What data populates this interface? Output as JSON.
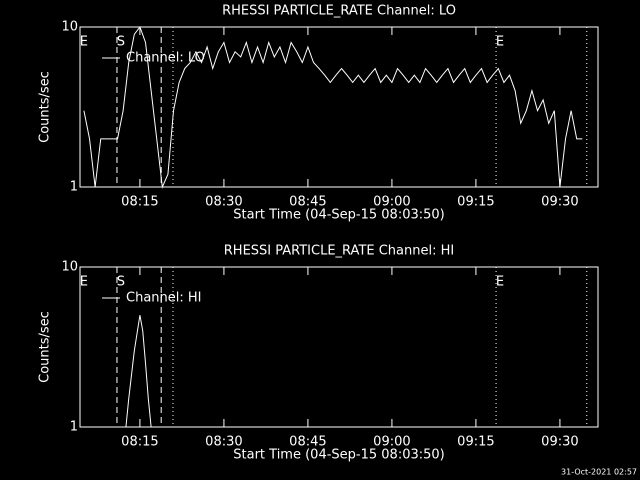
{
  "chart_data": [
    {
      "type": "line",
      "title": "RHESSI PARTICLE_RATE Channel: LO",
      "x_label": "Start Time (04-Sep-15 08:03:50)",
      "y_label": "Counts/sec",
      "xlim": [
        4.3,
        96.8
      ],
      "xticks": [
        {
          "value": 15,
          "label": "08:15"
        },
        {
          "value": 30,
          "label": "08:30"
        },
        {
          "value": 45,
          "label": "08:45"
        },
        {
          "value": 60,
          "label": "09:00"
        },
        {
          "value": 75,
          "label": "09:15"
        },
        {
          "value": 90,
          "label": "09:30"
        }
      ],
      "ylim": [
        1,
        10
      ],
      "yticks": [
        1,
        10
      ],
      "log_y": true,
      "legend": "upper left",
      "vlines": [
        {
          "x": 10.9,
          "style": "dashed"
        },
        {
          "x": 18.8,
          "style": "dashed"
        },
        {
          "x": 20.9,
          "style": "dotted"
        },
        {
          "x": 78.6,
          "style": "dotted"
        },
        {
          "x": 94.8,
          "style": "dotted"
        }
      ],
      "annotations": [
        {
          "text": "E",
          "x": 5
        },
        {
          "text": "S",
          "x": 11.6
        },
        {
          "text": "E",
          "x": 79.3
        }
      ],
      "x": [
        5,
        6,
        7,
        8,
        9,
        10,
        11,
        12,
        13,
        14,
        15,
        16,
        17,
        18,
        19,
        20,
        21,
        22,
        23,
        24,
        25,
        26,
        27,
        28,
        29,
        30,
        31,
        32,
        33,
        34,
        35,
        36,
        37,
        38,
        39,
        40,
        41,
        42,
        43,
        44,
        45,
        46,
        47,
        48,
        49,
        50,
        51,
        52,
        53,
        54,
        55,
        56,
        57,
        58,
        59,
        60,
        61,
        62,
        63,
        64,
        65,
        66,
        67,
        68,
        69,
        70,
        71,
        72,
        73,
        74,
        75,
        76,
        77,
        78,
        79,
        80,
        81,
        82,
        83,
        84,
        85,
        86,
        87,
        88,
        89,
        90,
        91,
        92,
        93,
        94
      ],
      "series": [
        {
          "name": "Channel: LO",
          "color": "#ffffff",
          "values": [
            3,
            2,
            1,
            2,
            2,
            2,
            2,
            3,
            6,
            9,
            10,
            8,
            4,
            2,
            1,
            1.2,
            3,
            4.5,
            5.5,
            6,
            7,
            6,
            7.5,
            5.5,
            7,
            8,
            6,
            7,
            6.5,
            8,
            6,
            7.5,
            6,
            8,
            6.5,
            7.5,
            6,
            8,
            7,
            6,
            7.5,
            6,
            5.5,
            5,
            4.5,
            5,
            5.5,
            5,
            4.5,
            5,
            4.5,
            5,
            5.5,
            4.5,
            5,
            4.5,
            5.5,
            5,
            4.5,
            5,
            4.5,
            5.5,
            5,
            4.5,
            5,
            5.5,
            4.5,
            5,
            5.5,
            4.5,
            5,
            5.5,
            4.5,
            5,
            5.5,
            4.5,
            5,
            4,
            2.5,
            3,
            4,
            3,
            3.5,
            2.5,
            3,
            1,
            2,
            3,
            2,
            2
          ]
        }
      ]
    },
    {
      "type": "line",
      "title": "RHESSI PARTICLE_RATE Channel: HI",
      "x_label": "Start Time (04-Sep-15 08:03:50)",
      "y_label": "Counts/sec",
      "xlim": [
        4.3,
        96.8
      ],
      "xticks": [
        {
          "value": 15,
          "label": "08:15"
        },
        {
          "value": 30,
          "label": "08:30"
        },
        {
          "value": 45,
          "label": "08:45"
        },
        {
          "value": 60,
          "label": "09:00"
        },
        {
          "value": 75,
          "label": "09:15"
        },
        {
          "value": 90,
          "label": "09:30"
        }
      ],
      "ylim": [
        1,
        10
      ],
      "yticks": [
        1,
        10
      ],
      "log_y": true,
      "legend": "upper left",
      "vlines": [
        {
          "x": 10.9,
          "style": "dashed"
        },
        {
          "x": 18.8,
          "style": "dashed"
        },
        {
          "x": 20.9,
          "style": "dotted"
        },
        {
          "x": 78.6,
          "style": "dotted"
        },
        {
          "x": 94.8,
          "style": "dotted"
        }
      ],
      "annotations": [
        {
          "text": "E",
          "x": 5
        },
        {
          "text": "S",
          "x": 11.6
        },
        {
          "text": "E",
          "x": 79.3
        }
      ],
      "x": [
        12.5,
        13,
        14,
        15,
        15.5,
        16,
        16.5,
        17
      ],
      "series": [
        {
          "name": "Channel: HI",
          "color": "#ffffff",
          "values": [
            1,
            1.5,
            3,
            5,
            4,
            2.5,
            1.5,
            1
          ]
        }
      ]
    }
  ],
  "footer": "31-Oct-2021 02:57"
}
